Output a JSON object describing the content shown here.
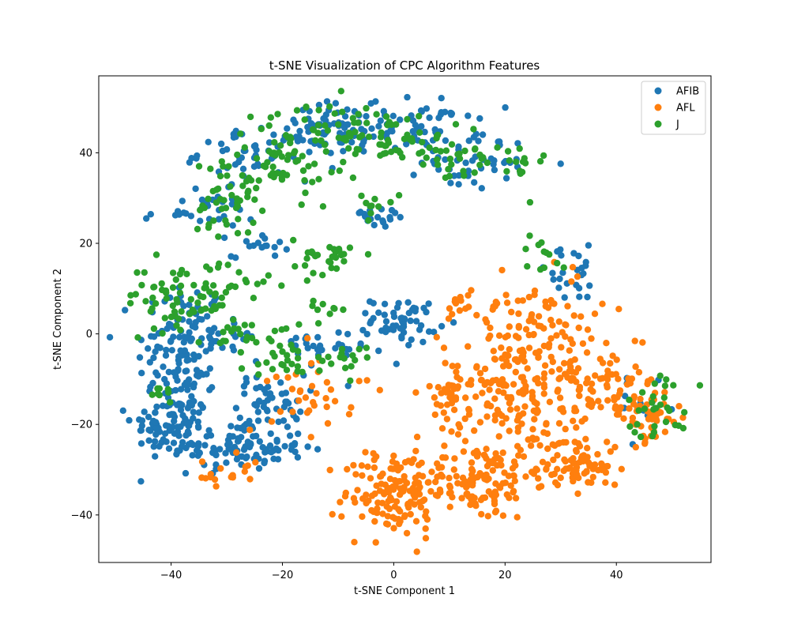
{
  "chart_data": {
    "type": "scatter",
    "title": "t-SNE Visualization of CPC Algorithm Features",
    "xlabel": "t-SNE Component 1",
    "ylabel": "t-SNE Component 2",
    "xlim": [
      -53,
      57
    ],
    "ylim": [
      -50.5,
      57
    ],
    "xticks": [
      -40,
      -20,
      0,
      20,
      40
    ],
    "yticks": [
      -40,
      -20,
      0,
      20,
      40
    ],
    "grid": false,
    "legend_position": "top-right",
    "series": [
      {
        "name": "AFIB",
        "color": "#1f77b4",
        "clusters": [
          {
            "cx": -38,
            "cy": -5,
            "sx": 4,
            "sy": 9,
            "n": 140
          },
          {
            "cx": -40,
            "cy": -20,
            "sx": 3.5,
            "sy": 3,
            "n": 70
          },
          {
            "cx": -28,
            "cy": -25,
            "sx": 6,
            "sy": 2.5,
            "n": 110
          },
          {
            "cx": -22,
            "cy": -15,
            "sx": 3,
            "sy": 3,
            "n": 45
          },
          {
            "cx": -35,
            "cy": 27,
            "sx": 5,
            "sy": 2,
            "n": 30
          },
          {
            "cx": -25,
            "cy": 40,
            "sx": 5,
            "sy": 3,
            "n": 55
          },
          {
            "cx": -10,
            "cy": 45,
            "sx": 5,
            "sy": 3,
            "n": 60
          },
          {
            "cx": 5,
            "cy": 46,
            "sx": 5,
            "sy": 3,
            "n": 60
          },
          {
            "cx": 15,
            "cy": 38,
            "sx": 5,
            "sy": 3,
            "n": 40
          },
          {
            "cx": 2,
            "cy": 3,
            "sx": 3,
            "sy": 2.5,
            "n": 55
          },
          {
            "cx": -15,
            "cy": -4,
            "sx": 5,
            "sy": 2.5,
            "n": 30
          },
          {
            "cx": -3,
            "cy": 26,
            "sx": 3,
            "sy": 1.5,
            "n": 20
          },
          {
            "cx": 32,
            "cy": 13,
            "sx": 4,
            "sy": 3,
            "n": 25
          },
          {
            "cx": -24,
            "cy": 20,
            "sx": 2.5,
            "sy": 1.5,
            "n": 15
          },
          {
            "cx": -30,
            "cy": 0,
            "sx": 3,
            "sy": 2,
            "n": 15
          },
          {
            "cx": 45,
            "cy": -17,
            "sx": 3,
            "sy": 3,
            "n": 12
          }
        ]
      },
      {
        "name": "AFL",
        "color": "#ff7f0e",
        "clusters": [
          {
            "cx": 0,
            "cy": -35,
            "sx": 4.5,
            "sy": 5,
            "n": 140
          },
          {
            "cx": 15,
            "cy": -33,
            "sx": 5,
            "sy": 4,
            "n": 110
          },
          {
            "cx": 30,
            "cy": -28,
            "sx": 5,
            "sy": 3,
            "n": 60
          },
          {
            "cx": 20,
            "cy": -12,
            "sx": 6,
            "sy": 7,
            "n": 170
          },
          {
            "cx": 35,
            "cy": -10,
            "sx": 5,
            "sy": 6,
            "n": 100
          },
          {
            "cx": 45,
            "cy": -18,
            "sx": 3.5,
            "sy": 3,
            "n": 60
          },
          {
            "cx": 25,
            "cy": 5,
            "sx": 5,
            "sy": 6,
            "n": 60
          },
          {
            "cx": 10,
            "cy": -15,
            "sx": 2,
            "sy": 2.5,
            "n": 15
          },
          {
            "cx": -14,
            "cy": -12,
            "sx": 4,
            "sy": 5,
            "n": 35
          },
          {
            "cx": -30,
            "cy": -31,
            "sx": 3,
            "sy": 2,
            "n": 18
          },
          {
            "cx": 12,
            "cy": 6,
            "sx": 2,
            "sy": 2,
            "n": 12
          },
          {
            "cx": 36,
            "cy": -30,
            "sx": 2.5,
            "sy": 2,
            "n": 30
          }
        ]
      },
      {
        "name": "J",
        "color": "#2ca02c",
        "clusters": [
          {
            "cx": -38,
            "cy": 8,
            "sx": 5,
            "sy": 4,
            "n": 70
          },
          {
            "cx": -30,
            "cy": 30,
            "sx": 3,
            "sy": 4,
            "n": 45
          },
          {
            "cx": -20,
            "cy": 38,
            "sx": 5,
            "sy": 4,
            "n": 50
          },
          {
            "cx": -10,
            "cy": 45,
            "sx": 6,
            "sy": 3,
            "n": 60
          },
          {
            "cx": 5,
            "cy": 42,
            "sx": 6,
            "sy": 4,
            "n": 40
          },
          {
            "cx": 18,
            "cy": 37,
            "sx": 5,
            "sy": 3,
            "n": 30
          },
          {
            "cx": -12,
            "cy": 17,
            "sx": 3,
            "sy": 2,
            "n": 30
          },
          {
            "cx": -28,
            "cy": 10,
            "sx": 3,
            "sy": 2,
            "n": 15
          },
          {
            "cx": -25,
            "cy": 0,
            "sx": 4,
            "sy": 2,
            "n": 25
          },
          {
            "cx": -18,
            "cy": -6,
            "sx": 4,
            "sy": 2,
            "n": 25
          },
          {
            "cx": -8,
            "cy": -6,
            "sx": 2,
            "sy": 1.5,
            "n": 12
          },
          {
            "cx": -3,
            "cy": 30,
            "sx": 2,
            "sy": 2,
            "n": 10
          },
          {
            "cx": 48,
            "cy": -16,
            "sx": 3,
            "sy": 4,
            "n": 30
          },
          {
            "cx": 27,
            "cy": 18,
            "sx": 2,
            "sy": 2,
            "n": 12
          },
          {
            "cx": -42,
            "cy": -13,
            "sx": 2,
            "sy": 2,
            "n": 8
          },
          {
            "cx": -13,
            "cy": 6,
            "sx": 2,
            "sy": 1,
            "n": 8
          }
        ]
      }
    ]
  }
}
